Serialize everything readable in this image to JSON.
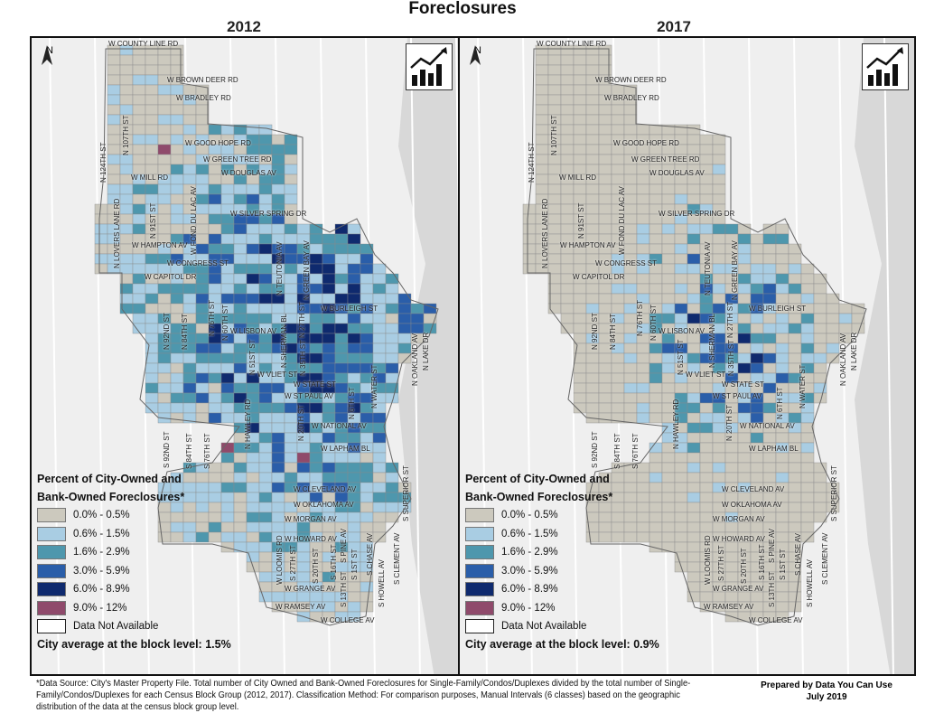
{
  "title": "Foreclosures",
  "colors": {
    "c0": "#ccc9be",
    "c1": "#a9cde3",
    "c2": "#4e97ad",
    "c3": "#2a5ea9",
    "c4": "#0f2a6e",
    "c5": "#8f4a6b",
    "na": "#ffffff",
    "land": "#efefef",
    "water": "#d8d8d8"
  },
  "north_label": "N",
  "legend": {
    "items": [
      {
        "label": "0.0% - 0.5%",
        "color_key": "c0"
      },
      {
        "label": "0.6% - 1.5%",
        "color_key": "c1"
      },
      {
        "label": "1.6% - 2.9%",
        "color_key": "c2"
      },
      {
        "label": "3.0% - 5.9%",
        "color_key": "c3"
      },
      {
        "label": "6.0% - 8.9%",
        "color_key": "c4"
      },
      {
        "label": "9.0% - 12%",
        "color_key": "c5"
      },
      {
        "label": "Data Not Available",
        "color_key": "na"
      }
    ]
  },
  "maps": [
    {
      "year": "2012",
      "legend_title_1": "Percent of City-Owned and",
      "legend_title_2": "Bank-Owned Foreclosures*",
      "city_average": "City average at the block level: 1.5%"
    },
    {
      "year": "2017",
      "legend_title_1": "Percent  of City-Owned and",
      "legend_title_2": "Bank-Owned Foreclosures*",
      "city_average": "City average at the block level: 0.9%"
    }
  ],
  "streets": [
    "W COUNTY LINE RD",
    "W BROWN DEER RD",
    "W BRADLEY RD",
    "W GOOD HOPE RD",
    "W GREEN TREE RD",
    "W MILL RD",
    "W DOUGLAS AV",
    "W SILVER SPRING DR",
    "W FOND DU LAC AV",
    "W HAMPTON AV",
    "W CONGRESS ST",
    "W CAPITOL DR",
    "W BURLEIGH ST",
    "W LISBON AV",
    "W VLIET ST",
    "W STATE ST",
    "W ST PAUL AV",
    "W NATIONAL AV",
    "W LAPHAM BL",
    "W CLEVELAND AV",
    "W OKLAHOMA AV",
    "W MORGAN AV",
    "W HOWARD AV",
    "W LOOMIS RD",
    "W GRANGE AV",
    "W RAMSEY AV",
    "W COLLEGE AV",
    "N 124TH ST",
    "N 107TH ST",
    "N 91ST ST",
    "N 76TH ST",
    "N 60TH ST",
    "N 51ST ST",
    "N 35TH ST",
    "N 27TH ST",
    "N 20TH ST",
    "N 6TH ST",
    "N 92ND ST",
    "N 84TH ST",
    "N OAKLAND AV",
    "N LAKE DR",
    "S 92ND ST",
    "S 84TH ST",
    "S 76TH ST",
    "S 27TH ST",
    "S 20TH ST",
    "S 13TH ST",
    "S 16TH ST",
    "S 1ST ST",
    "S CHASE AV",
    "S HOWELL AV",
    "S PINE AV",
    "S CLEMENT AV",
    "S SUPERIOR ST",
    "N LOVERS LANE RD",
    "N HAWLEY RD",
    "N TEUTONIA AV",
    "N GREEN BAY AV",
    "N SHERMAN BL",
    "N WATER ST"
  ],
  "footer": {
    "note": "*Data Source: City's Master Property File. Total number of City Owned and Bank-Owned Foreclosures for Single-Family/Condos/Duplexes divided by the total number of Single-Family/Condos/Duplexes for each Census Block Group (2012, 2017). Classification Method: For comparison purposes, Manual Intervals (6 classes) based on the geographic distribution of the data at the census block group level.",
    "prepared_by": "Prepared by Data You Can Use",
    "date": "July 2019"
  }
}
